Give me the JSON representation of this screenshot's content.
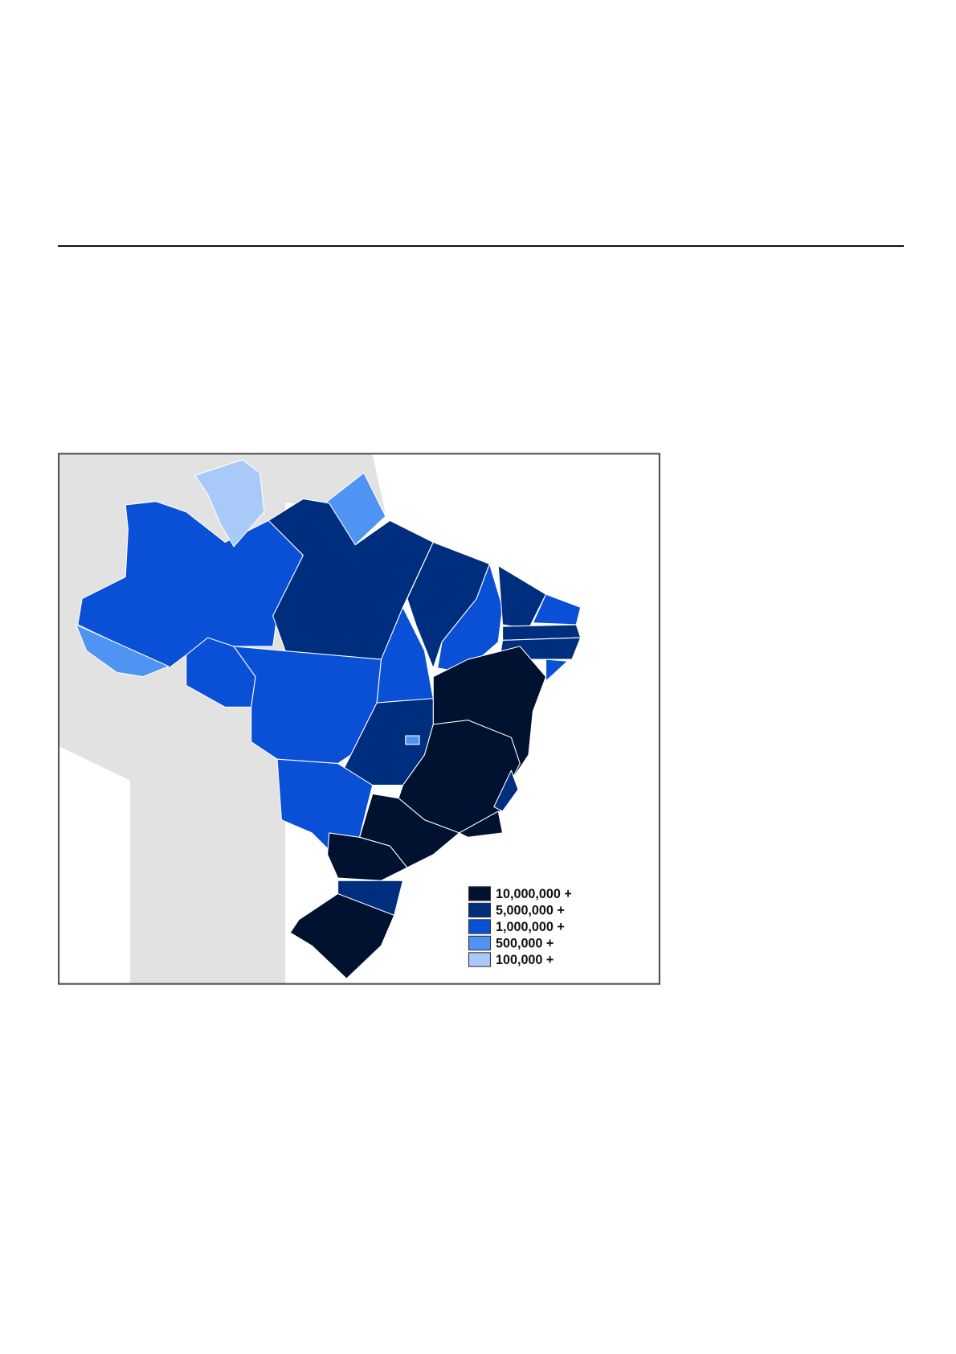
{
  "map": {
    "legend": [
      {
        "label": "10,000,000 +",
        "color": "#001230"
      },
      {
        "label": "5,000,000 +",
        "color": "#002e7e"
      },
      {
        "label": "1,000,000 +",
        "color": "#0a50d6"
      },
      {
        "label": "500,000 +",
        "color": "#4f94f2"
      },
      {
        "label": "100,000 +",
        "color": "#a9c9f8"
      }
    ]
  }
}
